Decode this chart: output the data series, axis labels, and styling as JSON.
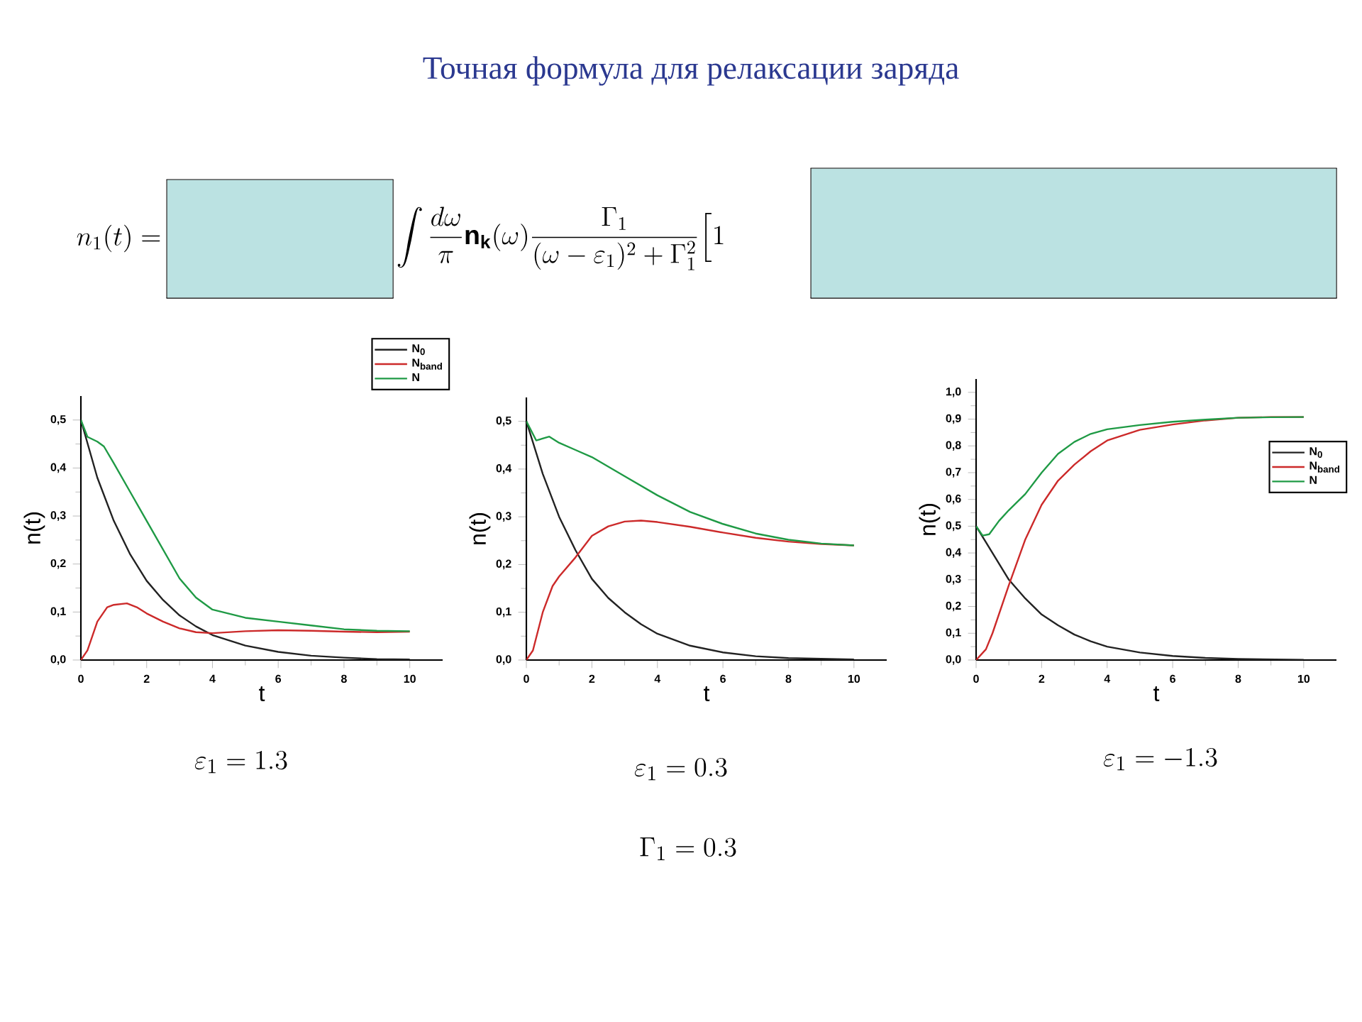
{
  "chart_data": [
    {
      "type": "line",
      "xlabel": "t",
      "ylabel": "n(t)",
      "xlim": [
        0,
        11
      ],
      "ylim": [
        0,
        0.55
      ],
      "xticks": [
        0,
        2,
        4,
        6,
        8,
        10
      ],
      "yticks": [
        {
          "value": 0,
          "label": "0,0"
        },
        {
          "value": 0.1,
          "label": "0,1"
        },
        {
          "value": 0.2,
          "label": "0,2"
        },
        {
          "value": 0.3,
          "label": "0,3"
        },
        {
          "value": 0.4,
          "label": "0,4"
        },
        {
          "value": 0.5,
          "label": "0,5"
        }
      ],
      "legend": "top right",
      "grid": false,
      "marker": "none",
      "line_style": "solid",
      "annotations": [
        "\\varepsilon_1 = 1.3"
      ],
      "series": [
        {
          "name": "N$_{0}$",
          "color": "#222222",
          "x": [
            0,
            0.5,
            1,
            1.5,
            2,
            2.5,
            3,
            3.5,
            4,
            5,
            6,
            7,
            8,
            9,
            10
          ],
          "values": [
            0.5,
            0.38,
            0.29,
            0.22,
            0.165,
            0.125,
            0.093,
            0.07,
            0.052,
            0.03,
            0.017,
            0.009,
            0.005,
            0.002,
            0.001
          ]
        },
        {
          "name": "N$_{band}$",
          "color": "#cc2a2a",
          "x": [
            0,
            0.2,
            0.5,
            0.8,
            1,
            1.4,
            1.7,
            2,
            2.5,
            3,
            3.5,
            4,
            5,
            6,
            7,
            8,
            9,
            10
          ],
          "values": [
            0,
            0.02,
            0.08,
            0.11,
            0.115,
            0.118,
            0.11,
            0.097,
            0.08,
            0.066,
            0.058,
            0.056,
            0.06,
            0.062,
            0.061,
            0.059,
            0.058,
            0.059
          ]
        },
        {
          "name": "N",
          "color": "#1f9a45",
          "x": [
            0,
            0.2,
            0.5,
            0.7,
            1,
            1.5,
            2,
            2.5,
            3,
            3.5,
            4,
            5,
            6,
            7,
            8,
            9,
            10
          ],
          "values": [
            0.5,
            0.465,
            0.455,
            0.445,
            0.41,
            0.35,
            0.29,
            0.23,
            0.17,
            0.13,
            0.105,
            0.088,
            0.08,
            0.072,
            0.064,
            0.061,
            0.06
          ]
        }
      ]
    },
    {
      "type": "line",
      "title": "Точная формула для релаксации заряда",
      "xlabel": "t",
      "ylabel": "n(t)",
      "xlim": [
        0,
        11
      ],
      "ylim": [
        0,
        0.55
      ],
      "xticks": [
        0,
        2,
        4,
        6,
        8,
        10
      ],
      "yticks": [
        {
          "value": 0,
          "label": "0,0"
        },
        {
          "value": 0.1,
          "label": "0,1"
        },
        {
          "value": 0.2,
          "label": "0,2"
        },
        {
          "value": 0.3,
          "label": "0,3"
        },
        {
          "value": 0.4,
          "label": "0,4"
        },
        {
          "value": 0.5,
          "label": "0,5"
        }
      ],
      "legend": false,
      "grid": false,
      "marker": "none",
      "line_style": "solid",
      "annotations": [
        "\\varepsilon_1 = 0.3",
        "n_1(t) =",
        "\\int \\frac{d\\omega}{\\pi}\\mathbf{n}_{\\mathbf{k}}(\\omega)\\frac{\\Gamma_1}{(\\omega-\\varepsilon_1)^2+\\Gamma_1^2}\\Big[1",
        "\\Gamma_1 = 0.3"
      ],
      "series": [
        {
          "color": "#222222",
          "x": [
            0,
            0.5,
            1,
            1.5,
            2,
            2.5,
            3,
            3.5,
            4,
            5,
            6,
            7,
            8,
            10
          ],
          "values": [
            0.5,
            0.39,
            0.3,
            0.23,
            0.17,
            0.13,
            0.1,
            0.075,
            0.055,
            0.03,
            0.016,
            0.008,
            0.004,
            0.001
          ]
        },
        {
          "color": "#cc2a2a",
          "x": [
            0,
            0.2,
            0.5,
            0.8,
            1,
            1.5,
            2,
            2.5,
            3,
            3.5,
            4,
            5,
            6,
            7,
            8,
            9,
            10
          ],
          "values": [
            0,
            0.02,
            0.1,
            0.155,
            0.175,
            0.215,
            0.26,
            0.28,
            0.29,
            0.292,
            0.289,
            0.279,
            0.267,
            0.256,
            0.248,
            0.243,
            0.24
          ]
        },
        {
          "color": "#1f9a45",
          "x": [
            0,
            0.3,
            0.7,
            1,
            1.5,
            2,
            2.5,
            3,
            4,
            5,
            6,
            7,
            8,
            9,
            10
          ],
          "values": [
            0.5,
            0.46,
            0.468,
            0.455,
            0.44,
            0.425,
            0.405,
            0.385,
            0.345,
            0.31,
            0.285,
            0.265,
            0.252,
            0.244,
            0.24
          ]
        }
      ]
    },
    {
      "type": "line",
      "xlabel": "t",
      "ylabel": "n(t)",
      "xlim": [
        0,
        11
      ],
      "ylim": [
        0,
        1.05
      ],
      "xticks": [
        0,
        2,
        4,
        6,
        8,
        10
      ],
      "yticks": [
        {
          "value": 0,
          "label": "0,0"
        },
        {
          "value": 0.1,
          "label": "0,1"
        },
        {
          "value": 0.2,
          "label": "0,2"
        },
        {
          "value": 0.3,
          "label": "0,3"
        },
        {
          "value": 0.4,
          "label": "0,4"
        },
        {
          "value": 0.5,
          "label": "0,5"
        },
        {
          "value": 0.6,
          "label": "0,6"
        },
        {
          "value": 0.7,
          "label": "0,7"
        },
        {
          "value": 0.8,
          "label": "0,8"
        },
        {
          "value": 0.9,
          "label": "0,9"
        },
        {
          "value": 1.0,
          "label": "1,0"
        }
      ],
      "legend": "right",
      "grid": false,
      "marker": "none",
      "line_style": "solid",
      "annotations": [
        "\\varepsilon_1 = -1.3"
      ],
      "series": [
        {
          "name": "N$_{0}$",
          "color": "#222222",
          "x": [
            0,
            0.5,
            1,
            1.5,
            2,
            2.5,
            3,
            3.5,
            4,
            5,
            6,
            7,
            8,
            10
          ],
          "values": [
            0.5,
            0.4,
            0.3,
            0.23,
            0.17,
            0.13,
            0.095,
            0.07,
            0.05,
            0.028,
            0.015,
            0.008,
            0.004,
            0.001
          ]
        },
        {
          "name": "N$_{band}$",
          "color": "#cc2a2a",
          "x": [
            0,
            0.3,
            0.5,
            1,
            1.5,
            2,
            2.5,
            3,
            3.5,
            4,
            5,
            6,
            7,
            8,
            9,
            10
          ],
          "values": [
            0,
            0.04,
            0.1,
            0.28,
            0.45,
            0.58,
            0.67,
            0.73,
            0.78,
            0.82,
            0.86,
            0.88,
            0.895,
            0.905,
            0.908,
            0.908
          ]
        },
        {
          "name": "N",
          "color": "#1f9a45",
          "x": [
            0,
            0.2,
            0.4,
            0.7,
            1,
            1.5,
            2,
            2.5,
            3,
            3.5,
            4,
            5,
            6,
            7,
            8,
            9,
            10
          ],
          "values": [
            0.5,
            0.465,
            0.47,
            0.52,
            0.56,
            0.62,
            0.7,
            0.77,
            0.815,
            0.845,
            0.862,
            0.878,
            0.89,
            0.898,
            0.905,
            0.907,
            0.908
          ]
        }
      ]
    }
  ]
}
